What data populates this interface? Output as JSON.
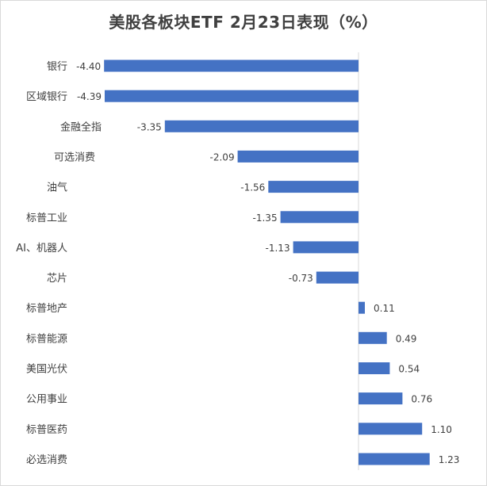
{
  "chart_data": {
    "type": "bar",
    "orientation": "horizontal",
    "title": "美股各板块ETF 2月23日表现（%）",
    "categories": [
      "银行",
      "区域银行",
      "金融全指",
      "可选消费",
      "油气",
      "标普工业",
      "AI、机器人",
      "芯片",
      "标普地产",
      "标普能源",
      "美国光伏",
      "公用事业",
      "标普医药",
      "必选消费"
    ],
    "values": [
      -4.4,
      -4.39,
      -3.35,
      -2.09,
      -1.56,
      -1.35,
      -1.13,
      -0.73,
      0.11,
      0.49,
      0.54,
      0.76,
      1.1,
      1.23
    ],
    "value_labels": [
      "-4.40",
      "-4.39",
      "-3.35",
      "-2.09",
      "-1.56",
      "-1.35",
      "-1.13",
      "-0.73",
      "0.11",
      "0.49",
      "0.54",
      "0.76",
      "1.10",
      "1.23"
    ],
    "bar_color": "#4472C4",
    "grid": false,
    "legend": "none"
  }
}
